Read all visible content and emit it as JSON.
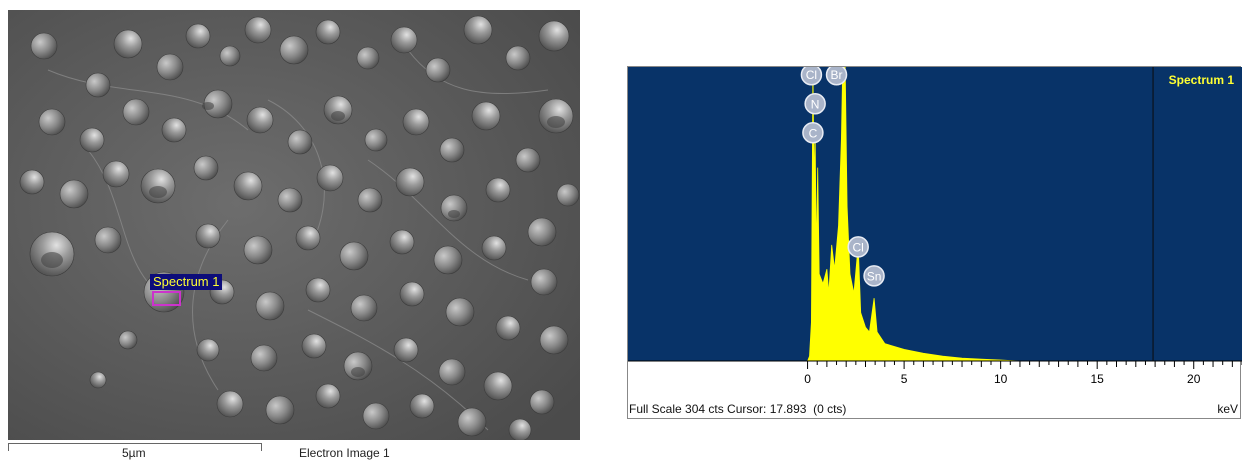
{
  "electron_image": {
    "spectrum_label": "Spectrum 1",
    "scale_text": "5µm",
    "caption": "Electron Image 1"
  },
  "spectrum": {
    "title": "Spectrum 1",
    "footer": "Full Scale 304 cts Cursor: 17.893  (0 cts)",
    "unit": "keV",
    "chart_data": {
      "type": "area",
      "title": "Spectrum 1",
      "xlabel": "keV",
      "ylabel": "",
      "xlim": [
        -9.3,
        22.5
      ],
      "ylim": [
        0,
        304
      ],
      "x_ticks": [
        0,
        5,
        10,
        15,
        20
      ],
      "cursor_x": 17.893,
      "background_color": "#083368",
      "fill_color": "#ffff00",
      "series": [
        {
          "values_xy": [
            [
              0.0,
              0
            ],
            [
              0.1,
              5
            ],
            [
              0.2,
              40
            ],
            [
              0.277,
              304
            ],
            [
              0.34,
              180
            ],
            [
              0.392,
              240
            ],
            [
              0.45,
              110
            ],
            [
              0.525,
              200
            ],
            [
              0.6,
              90
            ],
            [
              0.8,
              80
            ],
            [
              1.0,
              95
            ],
            [
              1.1,
              70
            ],
            [
              1.25,
              120
            ],
            [
              1.4,
              95
            ],
            [
              1.6,
              140
            ],
            [
              1.75,
              230
            ],
            [
              1.82,
              304
            ],
            [
              1.95,
              304
            ],
            [
              2.05,
              160
            ],
            [
              2.2,
              90
            ],
            [
              2.4,
              70
            ],
            [
              2.622,
              120
            ],
            [
              2.75,
              50
            ],
            [
              3.0,
              35
            ],
            [
              3.2,
              30
            ],
            [
              3.444,
              65
            ],
            [
              3.6,
              30
            ],
            [
              4.0,
              18
            ],
            [
              5.0,
              12
            ],
            [
              6.0,
              8
            ],
            [
              7.0,
              5
            ],
            [
              8.0,
              3
            ],
            [
              9.0,
              2
            ],
            [
              10.0,
              1
            ],
            [
              11.0,
              0
            ]
          ]
        }
      ],
      "peak_labels": [
        {
          "label": "Cl",
          "x": 0.2,
          "y": 296
        },
        {
          "label": "Br",
          "x": 1.5,
          "y": 296
        },
        {
          "label": "N",
          "x": 0.392,
          "y": 266
        },
        {
          "label": "C",
          "x": 0.277,
          "y": 236
        },
        {
          "label": "Cl",
          "x": 2.622,
          "y": 118
        },
        {
          "label": "Sn",
          "x": 3.444,
          "y": 88
        }
      ]
    }
  }
}
